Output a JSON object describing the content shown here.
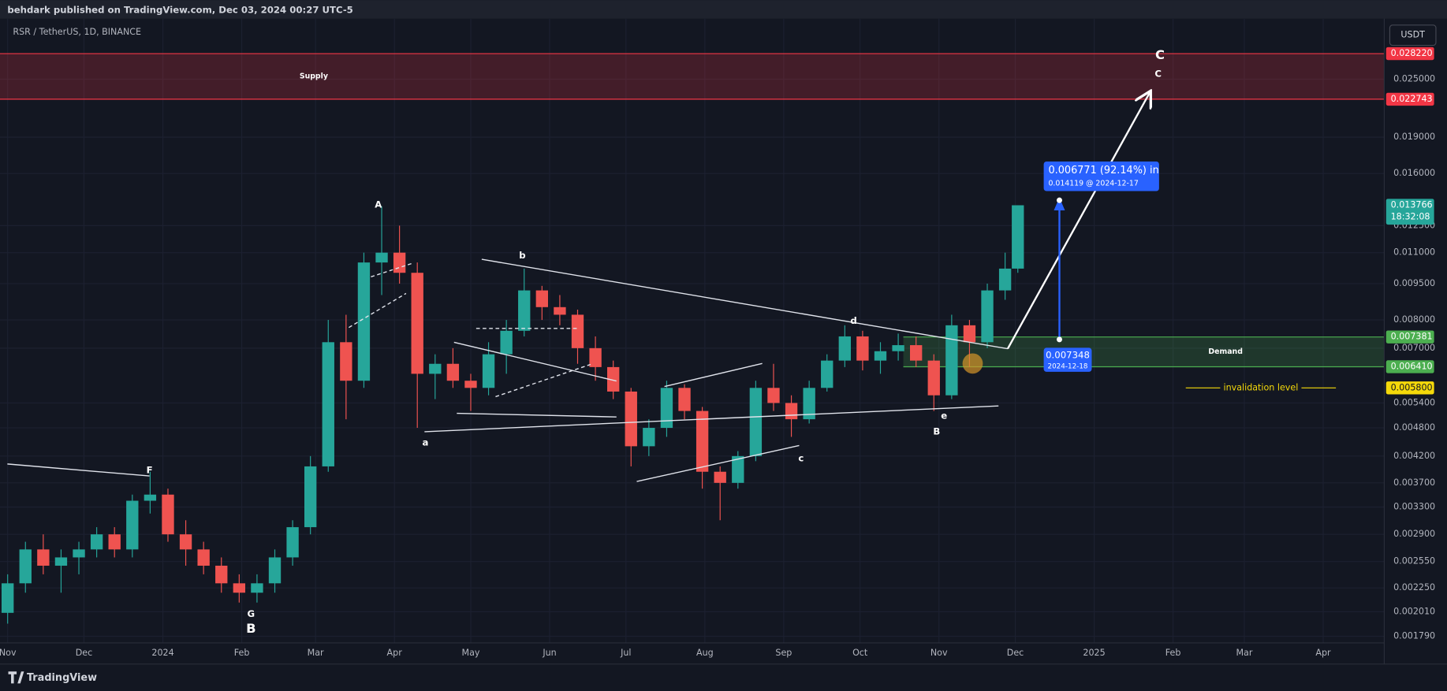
{
  "header": "behdark published on TradingView.com, Dec 03, 2024 00:27 UTC-5",
  "footer": "TradingView",
  "chart_data": {
    "type": "candlestick",
    "title": "RSR / TetherUS, 1D, BINANCE",
    "currency": "USDT",
    "log_scale": true,
    "grid": true,
    "up_color": "#26a69a",
    "down_color": "#ef5350",
    "xlim": [
      "2023-10-29",
      "2025-04-25"
    ],
    "xticks": [
      {
        "value": "2023-11-01",
        "label": "Nov"
      },
      {
        "value": "2023-12-01",
        "label": "Dec"
      },
      {
        "value": "2024-01-01",
        "label": "2024"
      },
      {
        "value": "2024-02-01",
        "label": "Feb"
      },
      {
        "value": "2024-03-01",
        "label": "Mar"
      },
      {
        "value": "2024-04-01",
        "label": "Apr"
      },
      {
        "value": "2024-05-01",
        "label": "May"
      },
      {
        "value": "2024-06-01",
        "label": "Jun"
      },
      {
        "value": "2024-07-01",
        "label": "Jul"
      },
      {
        "value": "2024-08-01",
        "label": "Aug"
      },
      {
        "value": "2024-09-01",
        "label": "Sep"
      },
      {
        "value": "2024-10-01",
        "label": "Oct"
      },
      {
        "value": "2024-11-01",
        "label": "Nov"
      },
      {
        "value": "2024-12-01",
        "label": "Dec"
      },
      {
        "value": "2025-01-01",
        "label": "2025"
      },
      {
        "value": "2025-02-01",
        "label": "Feb"
      },
      {
        "value": "2025-03-01",
        "label": "Mar"
      },
      {
        "value": "2025-04-01",
        "label": "Apr"
      }
    ],
    "ylim": [
      0.001735,
      0.03244
    ],
    "yticks": [
      {
        "value": 0.025,
        "label": "0.025000"
      },
      {
        "value": 0.019,
        "label": "0.019000"
      },
      {
        "value": 0.016,
        "label": "0.016000"
      },
      {
        "value": 0.0125,
        "label": "0.012500"
      },
      {
        "value": 0.011,
        "label": "0.011000"
      },
      {
        "value": 0.0095,
        "label": "0.009500"
      },
      {
        "value": 0.008,
        "label": "0.008000"
      },
      {
        "value": 0.007,
        "label": "0.007000"
      },
      {
        "value": 0.0054,
        "label": "0.005400"
      },
      {
        "value": 0.0048,
        "label": "0.004800"
      },
      {
        "value": 0.0042,
        "label": "0.004200"
      },
      {
        "value": 0.0037,
        "label": "0.003700"
      },
      {
        "value": 0.0033,
        "label": "0.003300"
      },
      {
        "value": 0.0029,
        "label": "0.002900"
      },
      {
        "value": 0.00255,
        "label": "0.002550"
      },
      {
        "value": 0.00225,
        "label": "0.002250"
      },
      {
        "value": 0.00201,
        "label": "0.002010"
      },
      {
        "value": 0.00179,
        "label": "0.001790"
      }
    ],
    "x": [
      "2023-11-01",
      "2023-11-08",
      "2023-11-15",
      "2023-11-22",
      "2023-11-29",
      "2023-12-06",
      "2023-12-13",
      "2023-12-20",
      "2023-12-27",
      "2024-01-03",
      "2024-01-10",
      "2024-01-17",
      "2024-01-24",
      "2024-01-31",
      "2024-02-07",
      "2024-02-14",
      "2024-02-21",
      "2024-02-28",
      "2024-03-06",
      "2024-03-13",
      "2024-03-20",
      "2024-03-27",
      "2024-04-03",
      "2024-04-10",
      "2024-04-17",
      "2024-04-24",
      "2024-05-01",
      "2024-05-08",
      "2024-05-15",
      "2024-05-22",
      "2024-05-29",
      "2024-06-05",
      "2024-06-12",
      "2024-06-19",
      "2024-06-26",
      "2024-07-03",
      "2024-07-10",
      "2024-07-17",
      "2024-07-24",
      "2024-07-31",
      "2024-08-07",
      "2024-08-14",
      "2024-08-21",
      "2024-08-28",
      "2024-09-04",
      "2024-09-11",
      "2024-09-18",
      "2024-09-25",
      "2024-10-02",
      "2024-10-09",
      "2024-10-16",
      "2024-10-23",
      "2024-10-30",
      "2024-11-06",
      "2024-11-13",
      "2024-11-20",
      "2024-11-27",
      "2024-12-02"
    ],
    "open": [
      0.002,
      0.0023,
      0.0027,
      0.0025,
      0.0026,
      0.0027,
      0.0029,
      0.0027,
      0.0034,
      0.0035,
      0.0029,
      0.0027,
      0.0025,
      0.0023,
      0.0022,
      0.0023,
      0.0026,
      0.003,
      0.004,
      0.0072,
      0.006,
      0.0105,
      0.011,
      0.01,
      0.0062,
      0.0065,
      0.006,
      0.0058,
      0.0068,
      0.0076,
      0.0092,
      0.0085,
      0.0082,
      0.007,
      0.0064,
      0.0057,
      0.0044,
      0.0048,
      0.0058,
      0.0052,
      0.0039,
      0.0037,
      0.0042,
      0.0058,
      0.0054,
      0.005,
      0.0058,
      0.0066,
      0.0074,
      0.0066,
      0.0069,
      0.0071,
      0.0066,
      0.0056,
      0.0078,
      0.0072,
      0.0092,
      0.0102
    ],
    "high": [
      0.0024,
      0.0028,
      0.0029,
      0.0027,
      0.0028,
      0.003,
      0.003,
      0.0035,
      0.0039,
      0.0036,
      0.0031,
      0.0028,
      0.0026,
      0.0024,
      0.0024,
      0.0027,
      0.0031,
      0.0042,
      0.008,
      0.0082,
      0.011,
      0.0137,
      0.0125,
      0.0105,
      0.0068,
      0.007,
      0.0062,
      0.0072,
      0.008,
      0.0102,
      0.0094,
      0.009,
      0.0084,
      0.0074,
      0.0066,
      0.0058,
      0.005,
      0.006,
      0.0059,
      0.0053,
      0.004,
      0.0043,
      0.006,
      0.0065,
      0.0056,
      0.006,
      0.0068,
      0.0078,
      0.0076,
      0.0072,
      0.0075,
      0.0074,
      0.0068,
      0.0082,
      0.008,
      0.0095,
      0.011,
      0.01376
    ],
    "low": [
      0.0019,
      0.0022,
      0.0024,
      0.0022,
      0.0024,
      0.0026,
      0.0026,
      0.0026,
      0.0032,
      0.0028,
      0.0025,
      0.0024,
      0.0022,
      0.0021,
      0.0021,
      0.0022,
      0.0025,
      0.0029,
      0.0039,
      0.005,
      0.0058,
      0.009,
      0.0095,
      0.0048,
      0.0055,
      0.0058,
      0.0052,
      0.0056,
      0.0062,
      0.0074,
      0.008,
      0.0078,
      0.0065,
      0.006,
      0.0055,
      0.004,
      0.0042,
      0.0046,
      0.005,
      0.0036,
      0.0031,
      0.0036,
      0.0041,
      0.0052,
      0.0046,
      0.0049,
      0.0057,
      0.0064,
      0.0063,
      0.0062,
      0.0066,
      0.0064,
      0.0052,
      0.0055,
      0.0064,
      0.007,
      0.0088,
      0.01
    ],
    "close": [
      0.0023,
      0.0027,
      0.0025,
      0.0026,
      0.0027,
      0.0029,
      0.0027,
      0.0034,
      0.0035,
      0.0029,
      0.0027,
      0.0025,
      0.0023,
      0.0022,
      0.0023,
      0.0026,
      0.003,
      0.004,
      0.0072,
      0.006,
      0.0105,
      0.011,
      0.01,
      0.0062,
      0.0065,
      0.006,
      0.0058,
      0.0068,
      0.0076,
      0.0092,
      0.0085,
      0.0082,
      0.007,
      0.0064,
      0.0057,
      0.0044,
      0.0048,
      0.0058,
      0.0052,
      0.0039,
      0.0037,
      0.0042,
      0.0058,
      0.0054,
      0.005,
      0.0058,
      0.0066,
      0.0074,
      0.0066,
      0.0069,
      0.0071,
      0.0066,
      0.0056,
      0.0078,
      0.0072,
      0.0092,
      0.0102,
      0.013766
    ],
    "zones": [
      {
        "name": "Supply",
        "low": 0.022743,
        "high": 0.02822,
        "start": "2023-10-29",
        "color": "#f23645"
      },
      {
        "name": "Demand",
        "low": 0.00641,
        "high": 0.007381,
        "start": "2024-10-18",
        "color": "#4caf50"
      }
    ],
    "levels": [
      {
        "name": "invalidation level",
        "value": 0.0058,
        "start": "2025-02-06",
        "end": "2025-04-06",
        "color": "#f5d90a"
      }
    ],
    "price_tags": [
      {
        "value": 0.02822,
        "label": "0.028220",
        "color": "#f23645",
        "text_color": "#ffffff"
      },
      {
        "value": 0.022743,
        "label": "0.022743",
        "color": "#f23645",
        "text_color": "#ffffff"
      },
      {
        "value": 0.013766,
        "label": "0.013766",
        "color": "#26a69a",
        "text_color": "#ffffff",
        "countdown": "18:32:08"
      },
      {
        "value": 0.007381,
        "label": "0.007381",
        "color": "#4caf50",
        "text_color": "#ffffff"
      },
      {
        "value": 0.00641,
        "label": "0.006410",
        "color": "#4caf50",
        "text_color": "#ffffff"
      },
      {
        "value": 0.0058,
        "label": "0.005800",
        "color": "#f5d90a",
        "text_color": "#131722"
      }
    ],
    "annotations": [
      "A",
      "a",
      "b",
      "c",
      "d",
      "e",
      "B",
      "F",
      "G",
      "B",
      "C",
      "C"
    ],
    "measure": {
      "change": "0.006771 (92.14%) in",
      "target": "0.014119 @ 2024-12-17",
      "start_price": "0.007348",
      "start_date": "2024-12-18"
    }
  }
}
